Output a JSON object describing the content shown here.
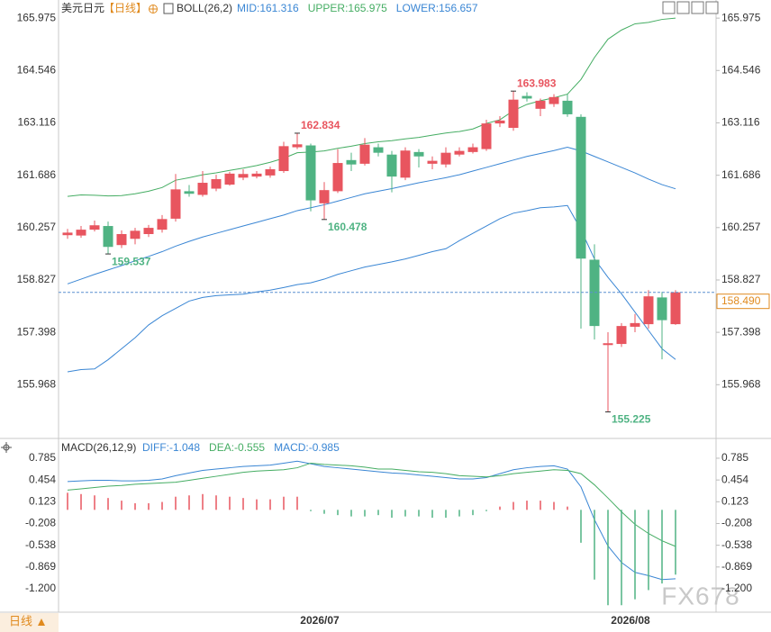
{
  "chart_data": [
    {
      "type": "candlestick",
      "title": "美元日元",
      "period": "【日线】",
      "indicator": "BOLL(26,2)",
      "categories": [
        null,
        null,
        null,
        null,
        null,
        null,
        null,
        null,
        null,
        null,
        null,
        null,
        null,
        null,
        null,
        null,
        null,
        null,
        null,
        "2026/07",
        null,
        null,
        null,
        null,
        null,
        null,
        null,
        null,
        null,
        null,
        null,
        null,
        null,
        null,
        null,
        null,
        null,
        null,
        null,
        null,
        null,
        null,
        "2026/08",
        null,
        null,
        null
      ],
      "open": [
        160.05,
        160.04,
        160.2,
        160.3,
        159.78,
        159.95,
        160.08,
        160.2,
        160.5,
        161.25,
        161.15,
        161.32,
        161.43,
        161.62,
        161.65,
        161.68,
        161.8,
        162.45,
        162.5,
        160.92,
        161.25,
        162.1,
        162.0,
        162.45,
        162.25,
        161.62,
        162.32,
        162.0,
        161.98,
        162.25,
        162.32,
        162.4,
        163.1,
        162.98,
        163.85,
        163.5,
        163.63,
        163.72,
        163.28,
        159.38,
        157.05,
        157.08,
        157.55,
        157.62,
        158.35,
        157.62
      ],
      "high": [
        160.22,
        160.3,
        160.45,
        160.42,
        160.18,
        160.25,
        160.33,
        160.6,
        161.72,
        161.42,
        161.8,
        161.7,
        161.78,
        161.85,
        161.8,
        161.92,
        162.6,
        162.834,
        162.55,
        161.5,
        162.4,
        162.3,
        162.7,
        162.55,
        162.35,
        162.45,
        162.4,
        162.2,
        162.45,
        162.45,
        162.55,
        163.2,
        163.3,
        163.983,
        163.95,
        163.78,
        163.9,
        163.9,
        163.35,
        159.8,
        157.4,
        157.65,
        157.9,
        158.55,
        158.5,
        158.55
      ],
      "low": [
        159.95,
        159.98,
        160.15,
        159.537,
        159.7,
        159.8,
        160.0,
        160.12,
        160.42,
        161.1,
        161.1,
        161.25,
        161.4,
        161.55,
        161.6,
        161.62,
        161.75,
        162.4,
        160.7,
        160.478,
        161.2,
        161.8,
        161.95,
        162.2,
        161.22,
        161.55,
        161.9,
        161.85,
        161.9,
        162.2,
        162.28,
        162.35,
        163.0,
        162.9,
        163.7,
        163.3,
        163.55,
        163.28,
        157.5,
        157.2,
        155.225,
        157.0,
        157.4,
        157.5,
        156.66,
        157.6
      ],
      "close": [
        160.12,
        160.2,
        160.32,
        159.73,
        160.08,
        160.17,
        160.25,
        160.49,
        161.3,
        161.18,
        161.48,
        161.58,
        161.73,
        161.72,
        161.73,
        161.85,
        162.48,
        162.53,
        161.0,
        161.28,
        162.02,
        161.98,
        162.52,
        162.3,
        161.65,
        162.36,
        162.2,
        162.08,
        162.3,
        162.35,
        162.45,
        163.1,
        163.18,
        163.75,
        163.78,
        163.72,
        163.82,
        163.35,
        159.41,
        157.57,
        157.1,
        157.57,
        157.65,
        158.38,
        157.73,
        158.49
      ],
      "up_color": "#e8555f",
      "down_color": "#4fb383",
      "series": [
        {
          "name": "MID:161.316",
          "color": "#3a86d4",
          "values": [
            158.72,
            158.85,
            158.98,
            159.1,
            159.22,
            159.35,
            159.47,
            159.6,
            159.75,
            159.88,
            160.0,
            160.1,
            160.2,
            160.3,
            160.4,
            160.5,
            160.6,
            160.72,
            160.8,
            160.88,
            160.98,
            161.08,
            161.18,
            161.25,
            161.32,
            161.4,
            161.48,
            161.55,
            161.62,
            161.7,
            161.8,
            161.9,
            162.0,
            162.1,
            162.2,
            162.28,
            162.36,
            162.45,
            162.35,
            162.2,
            162.05,
            161.9,
            161.75,
            161.58,
            161.43,
            161.316
          ]
        },
        {
          "name": "UPPER:165.975",
          "color": "#45ad63",
          "values": [
            161.11,
            161.15,
            161.14,
            161.12,
            161.13,
            161.18,
            161.25,
            161.35,
            161.55,
            161.62,
            161.7,
            161.75,
            161.82,
            161.88,
            161.95,
            162.04,
            162.15,
            162.3,
            162.32,
            162.35,
            162.42,
            162.48,
            162.55,
            162.6,
            162.63,
            162.68,
            162.72,
            162.78,
            162.84,
            162.88,
            162.95,
            163.1,
            163.2,
            163.45,
            163.62,
            163.72,
            163.8,
            163.9,
            164.3,
            164.9,
            165.4,
            165.65,
            165.82,
            165.86,
            165.94,
            165.975
          ]
        },
        {
          "name": "LOWER:156.657",
          "color": "#3a86d4",
          "values": [
            156.32,
            156.38,
            156.4,
            156.65,
            156.95,
            157.25,
            157.6,
            157.85,
            158.05,
            158.25,
            158.35,
            158.4,
            158.42,
            158.44,
            158.5,
            158.55,
            158.62,
            158.7,
            158.75,
            158.85,
            158.98,
            159.08,
            159.18,
            159.25,
            159.32,
            159.4,
            159.5,
            159.6,
            159.68,
            159.9,
            160.1,
            160.3,
            160.5,
            160.65,
            160.72,
            160.8,
            160.82,
            160.86,
            160.2,
            159.4,
            158.9,
            158.45,
            157.95,
            157.45,
            156.95,
            156.657
          ]
        }
      ],
      "annotations": [
        {
          "index": 3,
          "value": 159.537
        },
        {
          "index": 17,
          "value": 162.834
        },
        {
          "index": 19,
          "value": 160.478
        },
        {
          "index": 33,
          "value": 163.983
        },
        {
          "index": 40,
          "value": 155.225
        }
      ],
      "last_price": {
        "value": 158.49,
        "label": "158.490"
      },
      "ylim": [
        154.55,
        166.47
      ],
      "yticks": [
        165.975,
        164.546,
        163.116,
        161.686,
        160.257,
        158.827,
        157.398,
        155.968
      ],
      "grid": false
    },
    {
      "type": "macd",
      "title": "MACD(26,12,9)",
      "up_color": "#e8555f",
      "down_color": "#4fb383",
      "series": [
        {
          "name": "DIFF:-1.048",
          "color": "#3a86d4",
          "values": [
            0.43,
            0.44,
            0.45,
            0.45,
            0.44,
            0.44,
            0.45,
            0.47,
            0.52,
            0.56,
            0.6,
            0.62,
            0.64,
            0.66,
            0.67,
            0.68,
            0.71,
            0.74,
            0.7,
            0.66,
            0.64,
            0.62,
            0.6,
            0.58,
            0.56,
            0.55,
            0.53,
            0.51,
            0.49,
            0.47,
            0.47,
            0.49,
            0.55,
            0.61,
            0.64,
            0.66,
            0.67,
            0.62,
            0.35,
            -0.15,
            -0.55,
            -0.8,
            -0.95,
            -1.0,
            -1.06,
            -1.048
          ]
        },
        {
          "name": "DEA:-0.555",
          "color": "#45ad63",
          "values": [
            0.3,
            0.32,
            0.34,
            0.36,
            0.37,
            0.39,
            0.4,
            0.41,
            0.42,
            0.45,
            0.48,
            0.51,
            0.54,
            0.57,
            0.59,
            0.6,
            0.61,
            0.64,
            0.71,
            0.69,
            0.68,
            0.67,
            0.65,
            0.62,
            0.62,
            0.6,
            0.58,
            0.57,
            0.55,
            0.52,
            0.51,
            0.5,
            0.52,
            0.55,
            0.57,
            0.59,
            0.61,
            0.6,
            0.55,
            0.38,
            0.18,
            -0.03,
            -0.22,
            -0.36,
            -0.47,
            -0.555
          ]
        },
        {
          "name": "MACD:-0.985",
          "color": "#3a86d4",
          "type": "bar",
          "values": [
            0.26,
            0.24,
            0.22,
            0.18,
            0.14,
            0.1,
            0.1,
            0.12,
            0.2,
            0.22,
            0.24,
            0.22,
            0.2,
            0.18,
            0.16,
            0.16,
            0.2,
            0.2,
            -0.02,
            -0.06,
            -0.08,
            -0.1,
            -0.1,
            -0.08,
            -0.12,
            -0.1,
            -0.1,
            -0.12,
            -0.12,
            -0.1,
            -0.08,
            -0.02,
            0.05,
            0.12,
            0.14,
            0.14,
            0.12,
            0.05,
            -0.5,
            -1.06,
            -1.45,
            -1.45,
            -1.36,
            -1.22,
            -1.12,
            -0.985
          ]
        }
      ],
      "ylim": [
        -1.556,
        1.072
      ],
      "yticks": [
        0.785,
        0.454,
        0.123,
        -0.208,
        -0.538,
        -0.869,
        {
          "value": -1.2,
          "label": "-1.200"
        }
      ],
      "grid": false
    }
  ],
  "footer": {
    "tab": "日线",
    "watermark": "FX678"
  }
}
